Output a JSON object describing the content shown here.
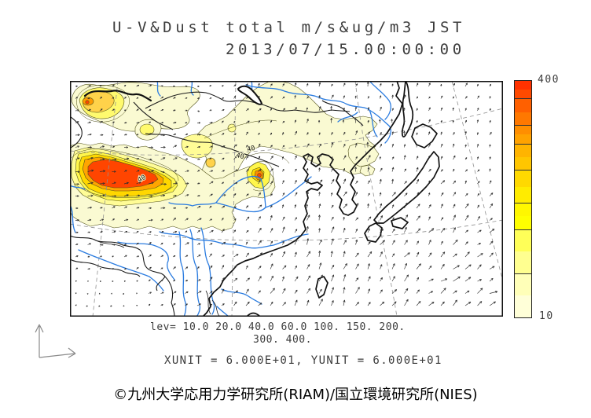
{
  "title": {
    "line1": "U-V&Dust total m/s&ug/m3 JST",
    "line2": "2013/07/15.00:00:00"
  },
  "legend": {
    "lev_line1": "lev= 10.0 20.0 40.0 60.0 100. 150. 200.",
    "lev_line2": "300. 400.",
    "units_line": "XUNIT = 6.000E+01, YUNIT = 6.000E+01"
  },
  "footer": {
    "copyright": "©九州大学応用力学研究所(RIAM)/国立環境研究所(NIES)"
  },
  "colorbar": {
    "max_label": "400",
    "min_label": "10",
    "bands": [
      {
        "c": "#FF3200",
        "f": 3.8,
        "t": false
      },
      {
        "c": "#FF4A00",
        "f": 3.8,
        "t": true
      },
      {
        "c": "#FF6000",
        "f": 5.6,
        "t": false
      },
      {
        "c": "#FF7800",
        "f": 5.6,
        "t": true
      },
      {
        "c": "#FF8E00",
        "f": 3.8,
        "t": false
      },
      {
        "c": "#FFA200",
        "f": 3.8,
        "t": true
      },
      {
        "c": "#FFB400",
        "f": 5.55,
        "t": false
      },
      {
        "c": "#FFC600",
        "f": 5.55,
        "t": true
      },
      {
        "c": "#FFD900",
        "f": 6.95,
        "t": false
      },
      {
        "c": "#FFEC00",
        "f": 6.95,
        "t": true
      },
      {
        "c": "#FFF700",
        "f": 5.55,
        "t": false
      },
      {
        "c": "#FFFF00",
        "f": 5.55,
        "t": true
      },
      {
        "c": "#FFFF58",
        "f": 9.375,
        "t": false
      },
      {
        "c": "#FFFF90",
        "f": 9.375,
        "t": true
      },
      {
        "c": "#FFFFB8",
        "f": 9.375,
        "t": false
      },
      {
        "c": "#FFFFD8",
        "f": 9.375,
        "t": false
      }
    ]
  },
  "map": {
    "contour_labels": [
      {
        "text": "40"
      },
      {
        "text": "40"
      },
      {
        "text": "40"
      }
    ]
  },
  "chart_data": {
    "type": "heatmap",
    "title": "U-V&Dust total m/s&ug/m3 JST",
    "timestamp": "2013/07/15.00:00:00",
    "contour_levels": [
      10,
      20,
      40,
      60,
      100,
      150,
      200,
      300,
      400
    ],
    "colorbar_range": [
      10,
      400
    ],
    "colorbar_colors_low_to_high": [
      "#FFFFD8",
      "#FFFFB8",
      "#FFFF90",
      "#FFFF58",
      "#FFFF00",
      "#FFF700",
      "#FFEC00",
      "#FFD900",
      "#FFC600",
      "#FFB400",
      "#FFA200",
      "#FF8E00",
      "#FF7800",
      "#FF6000",
      "#FF4A00",
      "#FF3200"
    ],
    "grid_units": {
      "xunit": "6.000E+01",
      "yunit": "6.000E+01"
    },
    "overlays": [
      "wind vector field (u-v arrows)",
      "dust concentration filled contours",
      "coastlines",
      "national borders",
      "rivers",
      "dashed graticule"
    ],
    "hotspots": [
      {
        "position": "west-basin (map-left center)",
        "approx_level": "400"
      },
      {
        "position": "northwest blob (map top-left)",
        "approx_level": "100-150"
      },
      {
        "position": "north-china small core (map center)",
        "approx_level": "300"
      },
      {
        "position": "mongolia band (map upper middle)",
        "approx_level": "20-60"
      },
      {
        "position": "korea-border patch",
        "approx_level": "10-20"
      }
    ]
  }
}
